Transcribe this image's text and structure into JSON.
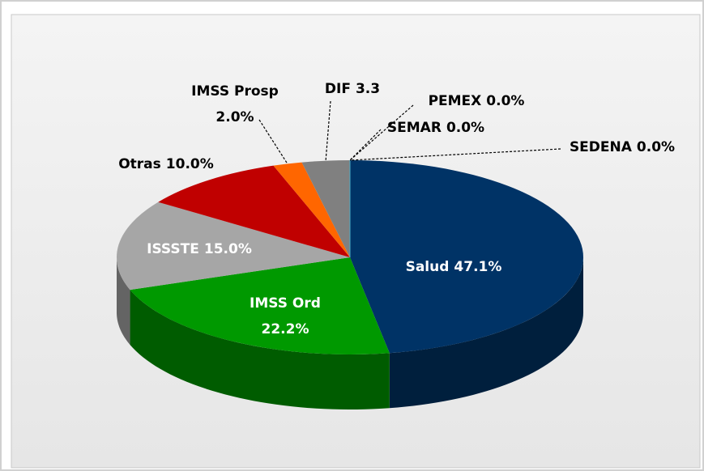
{
  "chart_data": {
    "type": "pie",
    "categories": [
      "Salud",
      "IMSS Ord",
      "ISSSTE",
      "Otras",
      "IMSS Prosp",
      "DIF",
      "PEMEX",
      "SEMAR",
      "SEDENA"
    ],
    "values": [
      47.1,
      22.2,
      15.0,
      10.0,
      2.0,
      3.3,
      0.0,
      0.0,
      0.0
    ],
    "value_labels": [
      "47.1%",
      "22.2%",
      "15.0%",
      "10.0%",
      "2.0%",
      "3.3",
      "0.0%",
      "0.0%",
      "0.0%"
    ],
    "colors": [
      "#003366",
      "#009900",
      "#a6a6a6",
      "#c00000",
      "#ff6600",
      "#808080",
      "#4f81bd",
      "#8064a2",
      "#4bacc6"
    ]
  }
}
